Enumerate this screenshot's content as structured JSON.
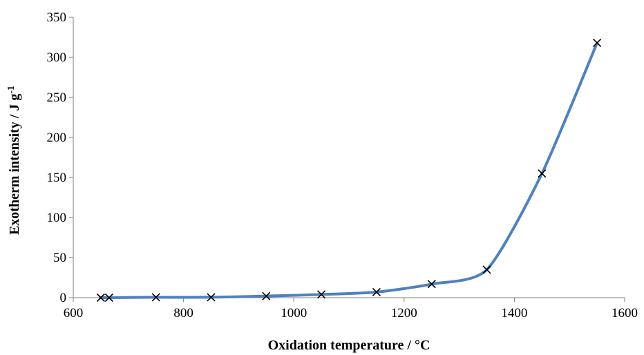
{
  "chart_data": {
    "type": "line",
    "title": "",
    "xlabel": "Oxidation temperature / °C",
    "ylabel_main": "Exotherm intensity / J g",
    "ylabel_sup": "-1",
    "xlim": [
      600,
      1600
    ],
    "ylim": [
      0,
      350
    ],
    "xticks": [
      600,
      800,
      1000,
      1200,
      1400,
      1600
    ],
    "yticks": [
      0,
      50,
      100,
      150,
      200,
      250,
      300,
      350
    ],
    "grid": false,
    "legend": "none",
    "series": [
      {
        "color": "#4f81bd",
        "marker": "x",
        "x": [
          650,
          665,
          750,
          850,
          950,
          1050,
          1150,
          1250,
          1350,
          1450,
          1550
        ],
        "y": [
          0,
          0,
          0.5,
          0.5,
          2,
          4,
          7,
          17,
          35,
          155,
          318
        ]
      }
    ]
  }
}
